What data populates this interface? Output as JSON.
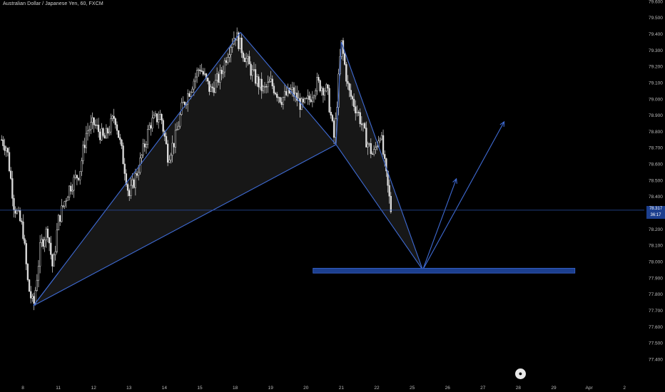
{
  "header": {
    "symbol_title": "Australian Dollar / Japanese Yen, 60, FXCM"
  },
  "price_badge": {
    "price": "78.317",
    "countdown": "36:17"
  },
  "colors": {
    "background": "#000000",
    "candle": "#dcdcdc",
    "pattern_line": "#3f6bd4",
    "pattern_fill": "#1a1a1a",
    "price_line": "#2a4fa8",
    "target_zone": "#1c3f8f"
  },
  "icons": {
    "logo": "tradingview-logo-icon"
  },
  "chart_data": {
    "type": "candlestick",
    "title": "Australian Dollar / Japanese Yen, 60, FXCM",
    "ylim": [
      77.3,
      79.6
    ],
    "yticks": [
      "79.600",
      "79.500",
      "79.400",
      "79.300",
      "79.200",
      "79.100",
      "79.000",
      "78.900",
      "78.800",
      "78.700",
      "78.600",
      "78.500",
      "78.400",
      "78.300",
      "78.200",
      "78.100",
      "78.000",
      "77.900",
      "77.800",
      "77.700",
      "77.600",
      "77.500",
      "77.400"
    ],
    "xticks": [
      {
        "label": "8",
        "pos": 0.0
      },
      {
        "label": "11",
        "pos": 1.0
      },
      {
        "label": "12",
        "pos": 2.0
      },
      {
        "label": "13",
        "pos": 3.0
      },
      {
        "label": "14",
        "pos": 4.0
      },
      {
        "label": "15",
        "pos": 5.0
      },
      {
        "label": "18",
        "pos": 6.0
      },
      {
        "label": "19",
        "pos": 7.0
      },
      {
        "label": "20",
        "pos": 8.0
      },
      {
        "label": "21",
        "pos": 9.0
      },
      {
        "label": "22",
        "pos": 10.0
      },
      {
        "label": "25",
        "pos": 11.0
      },
      {
        "label": "26",
        "pos": 12.0
      },
      {
        "label": "27",
        "pos": 13.0
      },
      {
        "label": "28",
        "pos": 14.0
      },
      {
        "label": "29",
        "pos": 15.0
      },
      {
        "label": "Apr",
        "pos": 16.0
      },
      {
        "label": "2",
        "pos": 17.0
      }
    ],
    "last_price": 78.317,
    "candle_path": [
      [
        -0.6,
        78.75
      ],
      [
        -0.45,
        78.7
      ],
      [
        -0.25,
        78.35
      ],
      [
        0.0,
        78.2
      ],
      [
        0.15,
        77.85
      ],
      [
        0.3,
        77.72
      ],
      [
        0.5,
        78.1
      ],
      [
        0.7,
        78.2
      ],
      [
        0.85,
        77.95
      ],
      [
        1.0,
        78.25
      ],
      [
        1.3,
        78.45
      ],
      [
        1.6,
        78.55
      ],
      [
        1.8,
        78.8
      ],
      [
        2.0,
        78.85
      ],
      [
        2.3,
        78.75
      ],
      [
        2.6,
        78.9
      ],
      [
        2.9,
        78.55
      ],
      [
        3.0,
        78.4
      ],
      [
        3.3,
        78.6
      ],
      [
        3.6,
        78.85
      ],
      [
        3.9,
        78.9
      ],
      [
        4.1,
        78.65
      ],
      [
        4.3,
        78.75
      ],
      [
        4.5,
        78.95
      ],
      [
        4.8,
        79.1
      ],
      [
        5.0,
        79.2
      ],
      [
        5.3,
        79.05
      ],
      [
        5.6,
        79.15
      ],
      [
        5.8,
        79.3
      ],
      [
        6.0,
        79.4
      ],
      [
        6.2,
        79.3
      ],
      [
        6.5,
        79.15
      ],
      [
        6.8,
        79.05
      ],
      [
        7.0,
        79.1
      ],
      [
        7.3,
        79.0
      ],
      [
        7.6,
        79.05
      ],
      [
        7.9,
        78.95
      ],
      [
        8.1,
        79.0
      ],
      [
        8.3,
        79.1
      ],
      [
        8.6,
        79.05
      ],
      [
        8.8,
        78.75
      ],
      [
        9.0,
        79.35
      ],
      [
        9.2,
        79.05
      ],
      [
        9.5,
        78.9
      ],
      [
        9.7,
        78.75
      ],
      [
        9.9,
        78.65
      ],
      [
        10.1,
        78.8
      ],
      [
        10.25,
        78.55
      ],
      [
        10.4,
        78.32
      ]
    ],
    "pattern": {
      "X": {
        "pos": 0.3,
        "price": 77.73
      },
      "A": {
        "pos": 6.15,
        "price": 79.41
      },
      "B": {
        "pos": 8.85,
        "price": 78.72
      },
      "C": {
        "pos": 9.0,
        "price": 79.35
      },
      "D": {
        "pos": 11.3,
        "price": 77.95
      },
      "B_low": {
        "pos": 1.0,
        "price": 77.93
      }
    },
    "projection_arrows": [
      {
        "from": {
          "pos": 11.3,
          "price": 77.95
        },
        "to": {
          "pos": 12.25,
          "price": 78.51
        }
      },
      {
        "from": {
          "pos": 11.3,
          "price": 77.95
        },
        "to": {
          "pos": 13.6,
          "price": 78.86
        }
      }
    ],
    "target_zone": {
      "from_pos": 8.2,
      "to_pos": 15.6,
      "price_top": 77.96,
      "price_bottom": 77.93
    },
    "grid": false
  }
}
